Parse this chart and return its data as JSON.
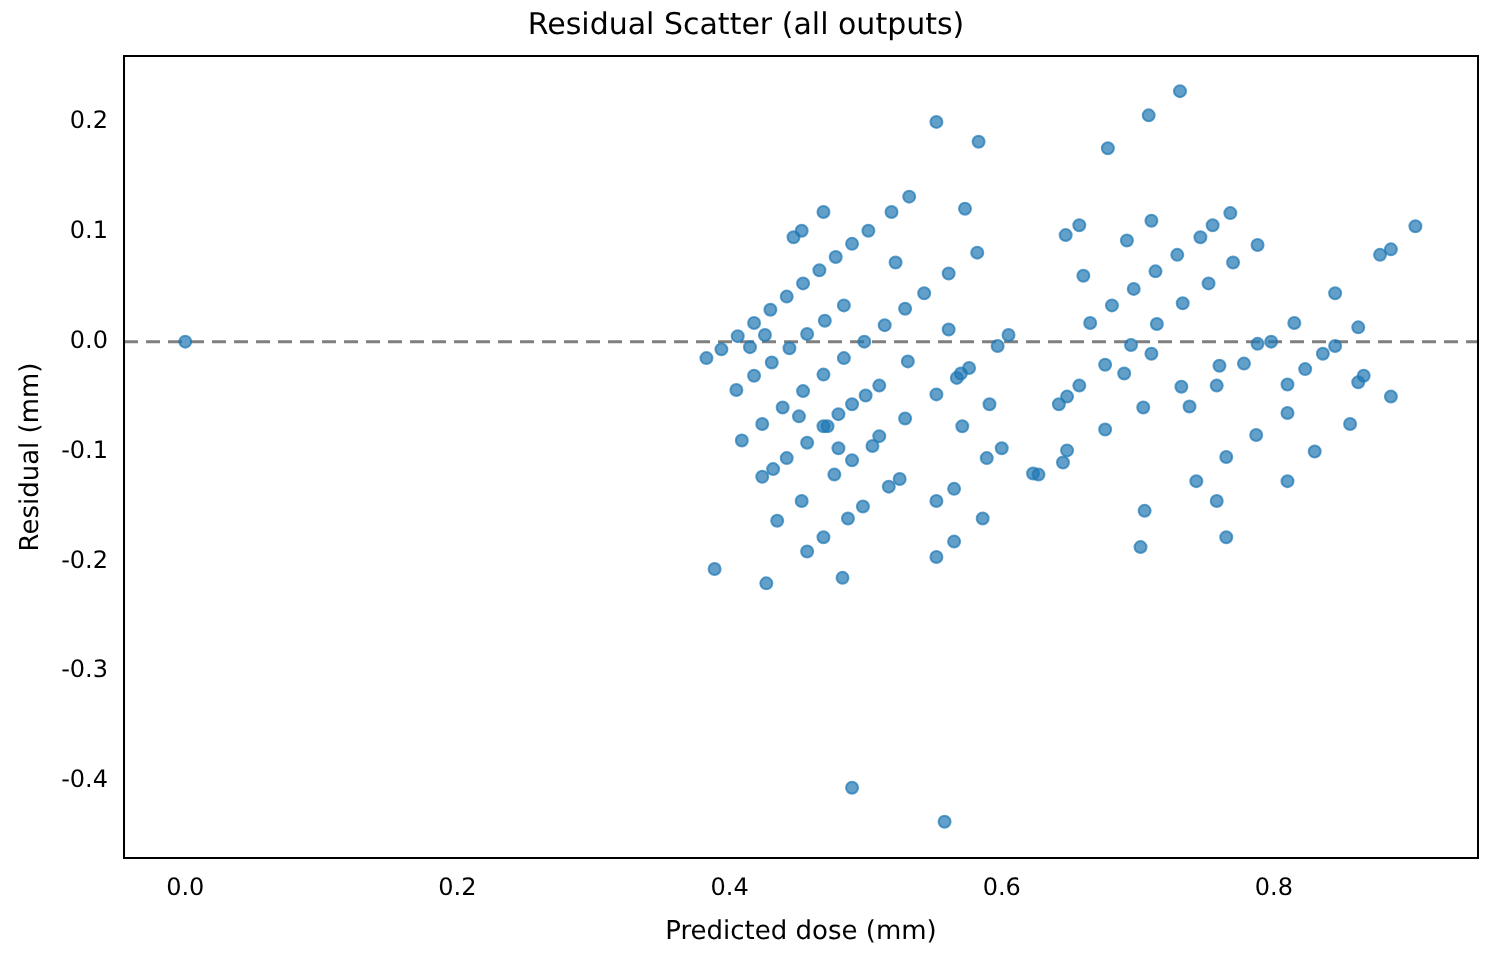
{
  "chart_data": {
    "type": "scatter",
    "title": "Residual Scatter (all outputs)",
    "xlabel": "Predicted dose (mm)",
    "ylabel": "Residual (mm)",
    "xlim": [
      -0.045,
      0.95
    ],
    "xticks": [
      {
        "value": 0,
        "label": "0.0"
      },
      0.2,
      0.4,
      0.6,
      0.8
    ],
    "ylim": [
      -0.47,
      0.26
    ],
    "yticks": [
      -0.4,
      -0.3,
      -0.2,
      -0.1,
      {
        "value": 0,
        "label": "0.0"
      },
      0.1,
      0.2
    ],
    "grid": false,
    "legend": false,
    "marker": "circle",
    "ref_lines": [
      {
        "axis": "y",
        "value": 0,
        "color": "#808080",
        "line_style": "dashed"
      }
    ],
    "series": [
      {
        "color": "#1f77b4",
        "x": [
          0.0,
          0.394,
          0.406,
          0.418,
          0.43,
          0.442,
          0.454,
          0.466,
          0.478,
          0.49,
          0.502,
          0.405,
          0.418,
          0.431,
          0.444,
          0.457,
          0.47,
          0.484,
          0.522,
          0.409,
          0.424,
          0.439,
          0.454,
          0.469,
          0.484,
          0.499,
          0.514,
          0.529,
          0.543,
          0.561,
          0.582,
          0.469,
          0.48,
          0.49,
          0.5,
          0.51,
          0.552,
          0.583,
          0.469,
          0.447,
          0.453,
          0.519,
          0.532,
          0.573,
          0.383,
          0.415,
          0.426,
          0.561,
          0.605,
          0.597,
          0.531,
          0.57,
          0.552,
          0.591,
          0.571,
          0.6,
          0.451,
          0.457,
          0.472,
          0.529,
          0.48,
          0.49,
          0.51,
          0.505,
          0.477,
          0.442,
          0.432,
          0.424,
          0.453,
          0.435,
          0.457,
          0.469,
          0.487,
          0.498,
          0.517,
          0.525,
          0.389,
          0.427,
          0.483,
          0.552,
          0.565,
          0.552,
          0.565,
          0.586,
          0.589,
          0.627,
          0.567,
          0.576,
          0.49,
          0.558,
          0.731,
          0.708,
          0.678,
          0.647,
          0.657,
          0.71,
          0.692,
          0.768,
          0.755,
          0.788,
          0.66,
          0.71,
          0.69,
          0.845,
          0.862,
          0.845,
          0.866,
          0.862,
          0.878,
          0.886,
          0.904,
          0.642,
          0.648,
          0.665,
          0.681,
          0.697,
          0.713,
          0.729,
          0.746,
          0.657,
          0.676,
          0.695,
          0.714,
          0.733,
          0.752,
          0.77,
          0.648,
          0.676,
          0.704,
          0.732,
          0.76,
          0.788,
          0.815,
          0.738,
          0.758,
          0.778,
          0.798,
          0.81,
          0.823,
          0.836,
          0.623,
          0.645,
          0.743,
          0.765,
          0.787,
          0.81,
          0.702,
          0.705,
          0.765,
          0.758,
          0.81,
          0.83,
          0.856,
          0.886
        ],
        "values": [
          0.0,
          -0.007,
          0.005,
          0.017,
          0.029,
          0.041,
          0.053,
          0.065,
          0.077,
          0.089,
          0.101,
          -0.044,
          -0.031,
          -0.019,
          -0.006,
          0.007,
          0.019,
          0.033,
          0.072,
          -0.09,
          -0.075,
          -0.06,
          -0.045,
          -0.03,
          -0.015,
          0.0,
          0.015,
          0.03,
          0.044,
          0.062,
          0.081,
          -0.077,
          -0.066,
          -0.057,
          -0.049,
          -0.04,
          0.2,
          0.182,
          0.118,
          0.095,
          0.101,
          0.118,
          0.132,
          0.121,
          -0.015,
          -0.005,
          0.006,
          0.011,
          0.006,
          -0.004,
          -0.018,
          -0.029,
          -0.048,
          -0.057,
          -0.077,
          -0.097,
          -0.068,
          -0.092,
          -0.077,
          -0.07,
          -0.097,
          -0.108,
          -0.086,
          -0.095,
          -0.121,
          -0.106,
          -0.116,
          -0.123,
          -0.145,
          -0.163,
          -0.191,
          -0.178,
          -0.161,
          -0.15,
          -0.132,
          -0.125,
          -0.207,
          -0.22,
          -0.215,
          -0.196,
          -0.182,
          -0.145,
          -0.134,
          -0.161,
          -0.106,
          -0.121,
          -0.033,
          -0.024,
          -0.406,
          -0.437,
          0.228,
          0.206,
          0.176,
          0.097,
          0.106,
          0.11,
          0.092,
          0.117,
          0.106,
          0.088,
          0.06,
          -0.011,
          -0.029,
          0.044,
          0.013,
          -0.004,
          -0.031,
          -0.037,
          0.079,
          0.084,
          0.105,
          -0.057,
          -0.05,
          0.017,
          0.033,
          0.048,
          0.064,
          0.079,
          0.095,
          -0.04,
          -0.021,
          -0.003,
          0.016,
          0.035,
          0.053,
          0.072,
          -0.099,
          -0.08,
          -0.06,
          -0.041,
          -0.022,
          -0.002,
          0.017,
          -0.059,
          -0.04,
          -0.02,
          0.0,
          -0.039,
          -0.025,
          -0.011,
          -0.12,
          -0.11,
          -0.127,
          -0.105,
          -0.085,
          -0.065,
          -0.187,
          -0.154,
          -0.178,
          -0.145,
          -0.127,
          -0.1,
          -0.075,
          -0.05
        ]
      }
    ]
  }
}
